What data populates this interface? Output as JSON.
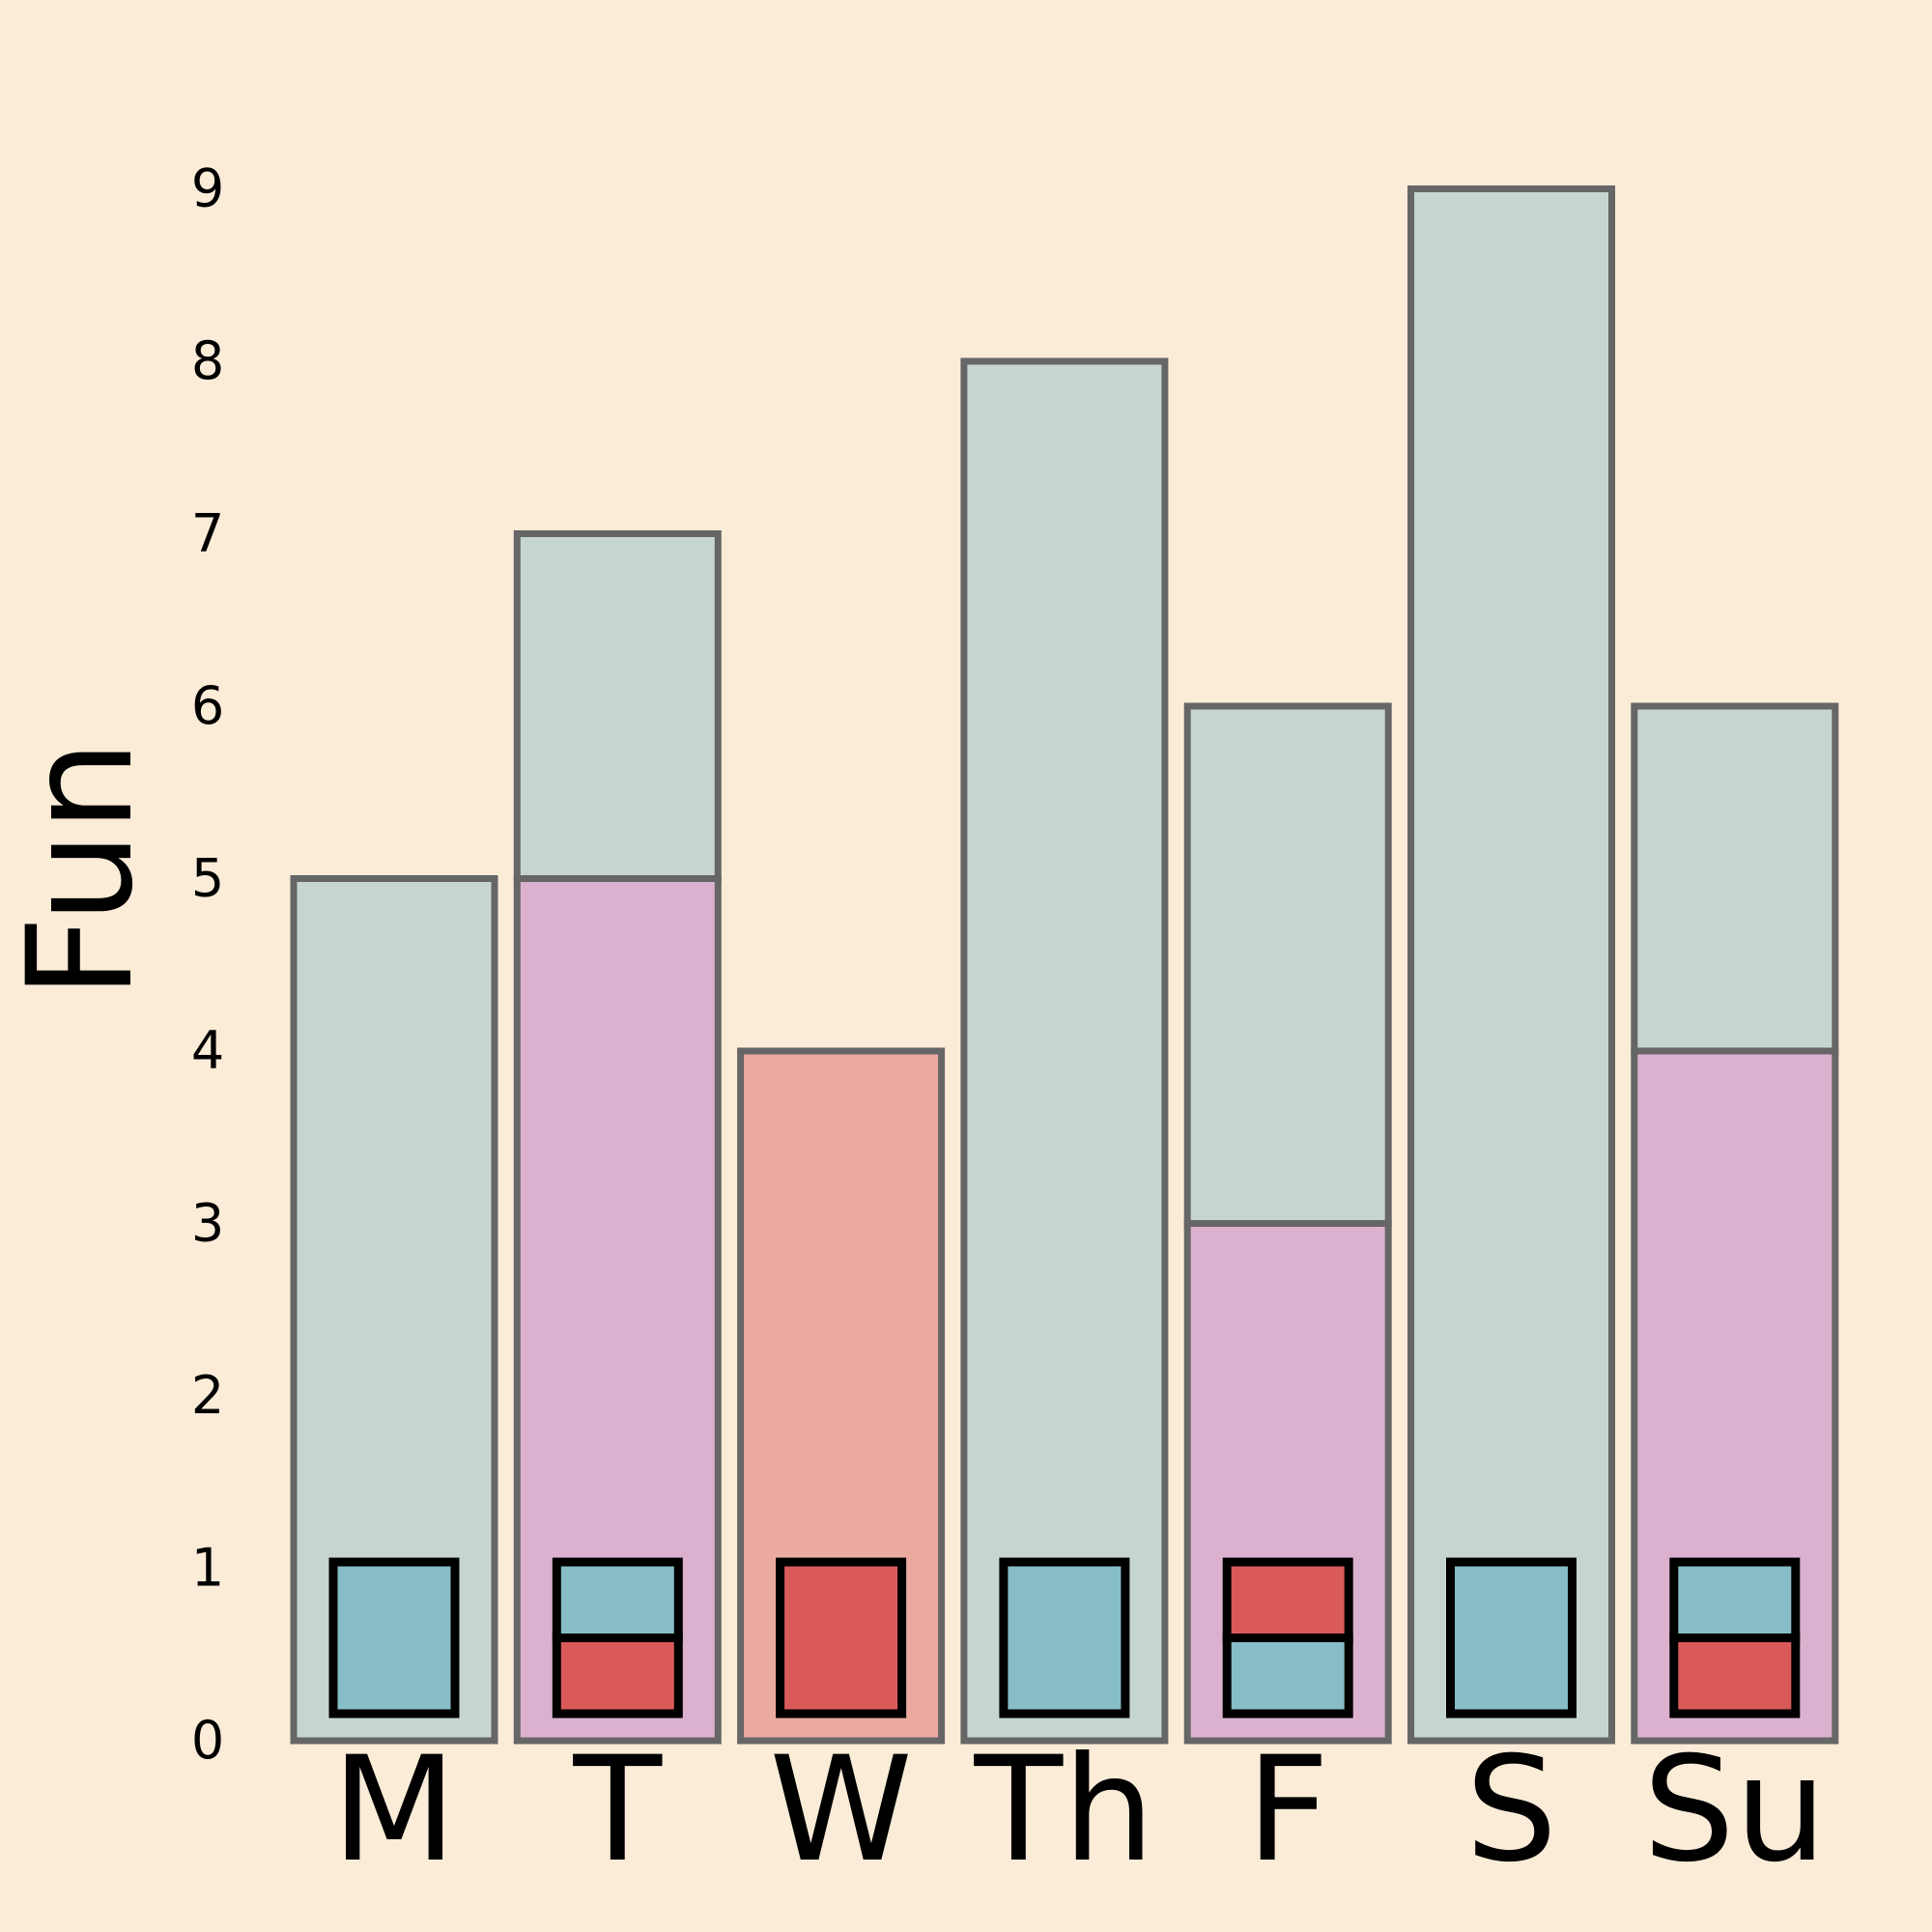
{
  "chart_data": {
    "type": "bar",
    "ylabel": "Fun",
    "xlabel": "",
    "ylim": [
      0,
      9
    ],
    "yticks": [
      0,
      1,
      2,
      3,
      4,
      5,
      6,
      7,
      8,
      9
    ],
    "grid": false,
    "categories": [
      "M",
      "T",
      "W",
      "Th",
      "F",
      "S",
      "Su"
    ],
    "series": [
      {
        "values": [
          5,
          5,
          4,
          8,
          3,
          9,
          4
        ]
      },
      {
        "values": [
          0,
          2,
          0,
          0,
          3,
          0,
          2
        ]
      }
    ],
    "segment_colors": [
      [
        "#C6D6CF"
      ],
      [
        "#DCB1CF",
        "#C6D6CF"
      ],
      [
        "#EBAAA0"
      ],
      [
        "#C6D6CF"
      ],
      [
        "#DCB1CF",
        "#C6D6CF"
      ],
      [
        "#C6D6CF"
      ],
      [
        "#DCB1CF",
        "#C6D6CF"
      ]
    ],
    "marker_blocks": [
      [
        "#87BDC6"
      ],
      [
        "#DA5A5A",
        "#87BDC6"
      ],
      [
        "#DA5A5A"
      ],
      [
        "#87BDC6"
      ],
      [
        "#87BDC6",
        "#DA5A5A"
      ],
      [
        "#87BDC6"
      ],
      [
        "#DA5A5A",
        "#87BDC6"
      ]
    ],
    "colors": {
      "background": "#FBECD8",
      "bar_outline": "#666666",
      "marker_outline": "#000000"
    }
  }
}
